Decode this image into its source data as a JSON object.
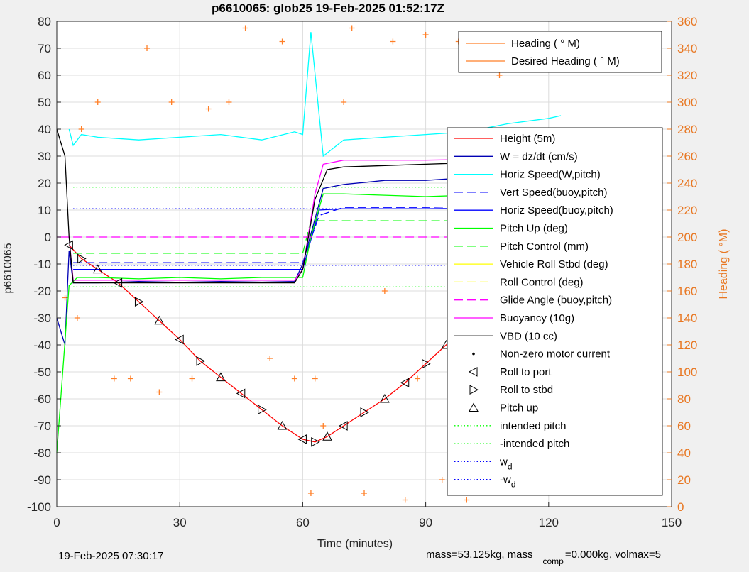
{
  "title": "p6610065: glob25 19-Feb-2025 01:52:17Z",
  "footer": {
    "timestamp": "19-Feb-2025 07:30:17",
    "mass_text": "mass=53.125kg, mass",
    "mass_sub": "comp",
    "mass_tail": "=0.000kg, volmax=5"
  },
  "colors": {
    "height": "#ff0000",
    "w": "#0000b4",
    "horiz": "#00ffff",
    "vert": "#0000ff",
    "pitch": "#00ff00",
    "roll": "#ffff00",
    "glide": "#ff00ff",
    "vbd": "#000000",
    "heading": "#ff7f27",
    "right_axis": "#e87722"
  },
  "chart_data": {
    "type": "line",
    "xlabel": "Time (minutes)",
    "ylabel": "p6610065",
    "y2label": "Heading (  °M)",
    "xlim": [
      0,
      150
    ],
    "ylim": [
      -100,
      80
    ],
    "y2lim": [
      0,
      360
    ],
    "xticks": [
      "0",
      "30",
      "60",
      "90",
      "120",
      "150"
    ],
    "yticks": [
      "80",
      "70",
      "60",
      "50",
      "40",
      "30",
      "20",
      "10",
      "0",
      "-10",
      "-20",
      "-30",
      "-40",
      "-50",
      "-60",
      "-70",
      "-80",
      "-90",
      "-100"
    ],
    "y2ticks": [
      "360",
      "340",
      "320",
      "300",
      "280",
      "260",
      "240",
      "220",
      "200",
      "180",
      "160",
      "140",
      "120",
      "100",
      "80",
      "60",
      "40",
      "20",
      "0"
    ],
    "grid": true,
    "legend_heading": [
      "Heading (  ° M)",
      "Desired Heading (    ° M)"
    ],
    "legend_main": [
      {
        "label": "Height (5m)",
        "style": "line",
        "color": "#ff0000"
      },
      {
        "label": "W = dz/dt (cm/s)",
        "style": "line",
        "color": "#0000b4"
      },
      {
        "label": "Horiz Speed(W,pitch)",
        "style": "line",
        "color": "#00ffff"
      },
      {
        "label": "Vert Speed(buoy,pitch)",
        "style": "dash",
        "color": "#0000ff"
      },
      {
        "label": "Horiz Speed(buoy,pitch)",
        "style": "line",
        "color": "#0000ff"
      },
      {
        "label": "Pitch Up (deg)",
        "style": "line",
        "color": "#00ff00"
      },
      {
        "label": "Pitch Control (mm)",
        "style": "dash",
        "color": "#00ff00"
      },
      {
        "label": "Vehicle Roll Stbd (deg)",
        "style": "line",
        "color": "#ffff00"
      },
      {
        "label": "Roll Control (deg)",
        "style": "dash",
        "color": "#ffff00"
      },
      {
        "label": "Glide Angle (buoy,pitch)",
        "style": "dash",
        "color": "#ff00ff"
      },
      {
        "label": "Buoyancy (10g)",
        "style": "line",
        "color": "#ff00ff"
      },
      {
        "label": "VBD (10 cc)",
        "style": "line",
        "color": "#000000"
      },
      {
        "label": "Non-zero motor current",
        "style": "dot",
        "color": "#000000"
      },
      {
        "label": "Roll to port",
        "style": "tri-left",
        "color": "#000000"
      },
      {
        "label": "Roll to stbd",
        "style": "tri-right",
        "color": "#000000"
      },
      {
        "label": "Pitch up",
        "style": "tri-up",
        "color": "#000000"
      },
      {
        "label": "intended pitch",
        "style": "dot-line",
        "color": "#00ff00"
      },
      {
        "label": "-intended pitch",
        "style": "dot-line",
        "color": "#00ff00"
      },
      {
        "label": "w",
        "sub": "d",
        "style": "dot-line",
        "color": "#0000ff"
      },
      {
        "label": "-w",
        "sub": "d",
        "style": "dot-line",
        "color": "#0000ff"
      }
    ],
    "series": [
      {
        "name": "Height (5m)",
        "color": "#ff0000",
        "x": [
          3,
          6,
          10,
          15,
          20,
          25,
          30,
          35,
          40,
          45,
          50,
          55,
          60,
          63,
          66,
          70,
          75,
          80,
          85,
          90,
          95,
          100,
          105,
          110,
          115,
          120,
          123
        ],
        "y": [
          -3,
          -8,
          -12,
          -17,
          -24,
          -31,
          -38,
          -46,
          -52,
          -58,
          -64,
          -70,
          -75,
          -76,
          -74,
          -70,
          -65,
          -60,
          -54,
          -47,
          -40,
          -33,
          -26,
          -19,
          -12,
          -5,
          -2
        ]
      },
      {
        "name": "W = dz/dt (cm/s)",
        "color": "#0000b4",
        "x": [
          0,
          2,
          3,
          4,
          10,
          20,
          30,
          40,
          50,
          58,
          60,
          65,
          70,
          80,
          90,
          100,
          110,
          120,
          123
        ],
        "y": [
          -30,
          -40,
          -5,
          -17,
          -17,
          -16.5,
          -16.8,
          -16.5,
          -16.7,
          -16.5,
          -10,
          18,
          19.5,
          21,
          21,
          22,
          22.5,
          23,
          23
        ]
      },
      {
        "name": "Horiz Speed(W,pitch)",
        "color": "#00ffff",
        "x": [
          3,
          4,
          6,
          10,
          20,
          30,
          40,
          50,
          58,
          60,
          62,
          65,
          70,
          80,
          90,
          100,
          110,
          120,
          123
        ],
        "y": [
          40,
          34,
          38,
          37,
          36,
          37,
          38,
          36,
          39,
          38,
          76,
          30,
          36,
          37,
          38,
          39,
          42,
          44,
          45
        ]
      },
      {
        "name": "Vert Speed(buoy,pitch)",
        "color": "#0000ff",
        "x": [
          4,
          60,
          64,
          70,
          90,
          123
        ],
        "y": [
          -9.5,
          -9.5,
          8,
          11,
          11,
          12
        ]
      },
      {
        "name": "Horiz Speed(buoy,pitch)",
        "color": "#0000ff",
        "x": [
          4,
          30,
          60,
          64,
          70,
          90,
          123
        ],
        "y": [
          -12,
          -12,
          -12,
          10,
          10.5,
          10.5,
          11
        ]
      },
      {
        "name": "Pitch Up (deg)",
        "color": "#00ff00",
        "x": [
          0,
          3,
          5,
          10,
          20,
          30,
          40,
          50,
          60,
          62,
          65,
          70,
          80,
          90,
          100,
          110,
          120,
          123
        ],
        "y": [
          -80,
          -18,
          -15,
          -15,
          -15.5,
          -15,
          -15.5,
          -15,
          -15,
          0,
          16,
          16,
          15.5,
          15,
          15.5,
          15,
          15,
          15
        ]
      },
      {
        "name": "Pitch Control (mm)",
        "color": "#00ff00",
        "x": [
          4,
          60,
          62,
          123
        ],
        "y": [
          -6,
          -6,
          6,
          6
        ]
      },
      {
        "name": "Glide Angle (buoy,pitch)",
        "color": "#ff00ff",
        "x": [
          4,
          123
        ],
        "y": [
          0,
          0
        ]
      },
      {
        "name": "Buoyancy (10g)",
        "color": "#ff00ff",
        "x": [
          0,
          3,
          4,
          10,
          30,
          50,
          58,
          60,
          63,
          65,
          70,
          90,
          110,
          123
        ],
        "y": [
          0,
          0,
          -16,
          -16,
          -16,
          -16,
          -16,
          -12,
          16,
          27,
          28.5,
          28.5,
          29,
          30
        ]
      },
      {
        "name": "VBD (10 cc)",
        "color": "#000000",
        "x": [
          0,
          2,
          3,
          4,
          10,
          30,
          50,
          58,
          60,
          63,
          66,
          70,
          80,
          90,
          100,
          110,
          117,
          120,
          123
        ],
        "y": [
          40,
          30,
          0,
          -17,
          -17,
          -17,
          -17,
          -17,
          -12,
          14,
          25,
          26,
          26.5,
          27,
          27.5,
          27.5,
          28,
          29,
          31
        ]
      }
    ],
    "reference_lines": [
      {
        "name": "intended pitch",
        "y": 18.5,
        "color": "#00ff00"
      },
      {
        "name": "-intended pitch",
        "y": -18.5,
        "color": "#00ff00"
      },
      {
        "name": "w_d",
        "y": 10.5,
        "color": "#0000ff"
      },
      {
        "name": "-w_d",
        "y": -10.5,
        "color": "#0000ff"
      }
    ],
    "heading": {
      "name": "Heading (°M)",
      "axis": "right",
      "x": [
        2,
        5,
        6,
        10,
        14,
        18,
        22,
        25,
        28,
        33,
        37,
        42,
        46,
        52,
        55,
        58,
        62,
        63,
        65,
        70,
        72,
        75,
        80,
        82,
        85,
        88,
        90,
        94,
        98,
        100,
        104,
        108,
        110,
        115,
        118,
        120,
        122
      ],
      "y": [
        155,
        140,
        280,
        300,
        95,
        95,
        340,
        85,
        300,
        95,
        295,
        300,
        355,
        110,
        345,
        95,
        10,
        95,
        60,
        300,
        355,
        10,
        160,
        345,
        5,
        95,
        350,
        20,
        345,
        5,
        350,
        320,
        20,
        350,
        15,
        340,
        330
      ]
    }
  }
}
